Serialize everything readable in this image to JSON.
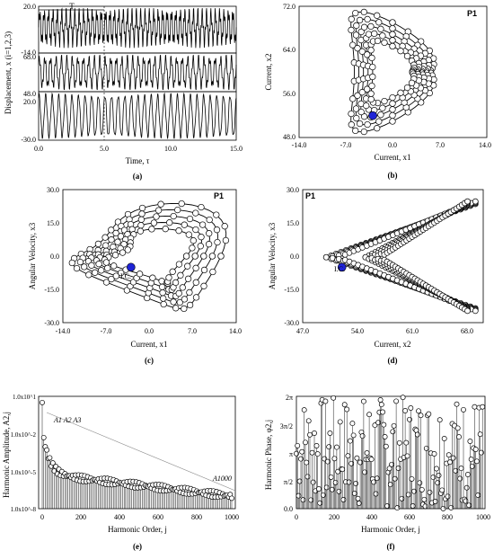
{
  "chart_data": [
    {
      "panel": "a",
      "type": "line",
      "caption": "(a)",
      "xlabel": "Time, τ",
      "ylabel": "Displacement, x (i=1,2,3)",
      "xlim": [
        0.0,
        15.0
      ],
      "xticks": [
        "0.0",
        "5.0",
        "10.0",
        "15.0"
      ],
      "period_label": "T",
      "period_range": [
        0.0,
        5.0
      ],
      "series": [
        {
          "ylim": [
            -14.0,
            20.0
          ],
          "yticks": [
            "20.0",
            "-14.0"
          ]
        },
        {
          "ylim": [
            48.0,
            68.0
          ],
          "yticks": [
            "68.0",
            "48.0"
          ]
        },
        {
          "ylim": [
            -30.0,
            20.0
          ],
          "yticks": [
            "20.0",
            "-30.0"
          ]
        }
      ]
    },
    {
      "panel": "b",
      "type": "scatter",
      "caption": "(b)",
      "label": "P1",
      "xlabel": "Current, x1",
      "ylabel": "Current, x2",
      "xlim": [
        -14.0,
        14.0
      ],
      "ylim": [
        48.0,
        72.0
      ],
      "xticks": [
        "-14.0",
        "-7.0",
        "0.0",
        "7.0",
        "14.0"
      ],
      "yticks": [
        "48.0",
        "56.0",
        "64.0",
        "72.0"
      ],
      "initial_condition": [
        -3.0,
        52.0
      ]
    },
    {
      "panel": "c",
      "type": "scatter",
      "caption": "(c)",
      "label": "P1",
      "ic_label": "I.C.",
      "xlabel": "Current, x1",
      "ylabel": "Angular Velocity, x3",
      "xlim": [
        -14.0,
        14.0
      ],
      "ylim": [
        -30.0,
        30.0
      ],
      "xticks": [
        "-14.0",
        "-7.0",
        "0.0",
        "7.0",
        "14.0"
      ],
      "yticks": [
        "-30.0",
        "-15.0",
        "0.0",
        "15.0",
        "30.0"
      ],
      "initial_condition": [
        -3.0,
        -5.0
      ]
    },
    {
      "panel": "d",
      "type": "scatter",
      "caption": "(d)",
      "label": "P1",
      "ic_label": "I.C.",
      "xlabel": "Current, x2",
      "ylabel": "Angular Velocity, x3",
      "xlim": [
        47.0,
        70.0
      ],
      "ylim": [
        -30.0,
        30.0
      ],
      "xticks": [
        "47.0",
        "54.0",
        "61.0",
        "68.0"
      ],
      "yticks": [
        "-30.0",
        "-15.0",
        "0.0",
        "15.0",
        "30.0"
      ],
      "initial_condition": [
        52.0,
        -5.0
      ]
    },
    {
      "panel": "e",
      "type": "scatter",
      "caption": "(e)",
      "xlabel": "Harmonic Order, j",
      "ylabel": "Harmonic Amplitude, A2,j",
      "xlim": [
        0,
        1000
      ],
      "ylim_log10": [
        -8,
        1
      ],
      "xticks": [
        "0",
        "200",
        "400",
        "600",
        "800",
        "1000"
      ],
      "yticks": [
        "1.0x10^1",
        "1.0x10^-2",
        "1.0x10^-5",
        "1.0x10^-8"
      ],
      "annotations": [
        "A1 A2 A3",
        "A1000"
      ]
    },
    {
      "panel": "f",
      "type": "scatter",
      "caption": "(f)",
      "xlabel": "Harmonic Order, j",
      "ylabel": "Harmonic Phase, φ2,j",
      "xlim": [
        0,
        1000
      ],
      "ylim": [
        "0.0",
        "2π"
      ],
      "xticks": [
        "0",
        "200",
        "400",
        "600",
        "800",
        "1000"
      ],
      "yticks": [
        "0.0",
        "π/2",
        "π",
        "3π/2",
        "2π"
      ]
    }
  ]
}
